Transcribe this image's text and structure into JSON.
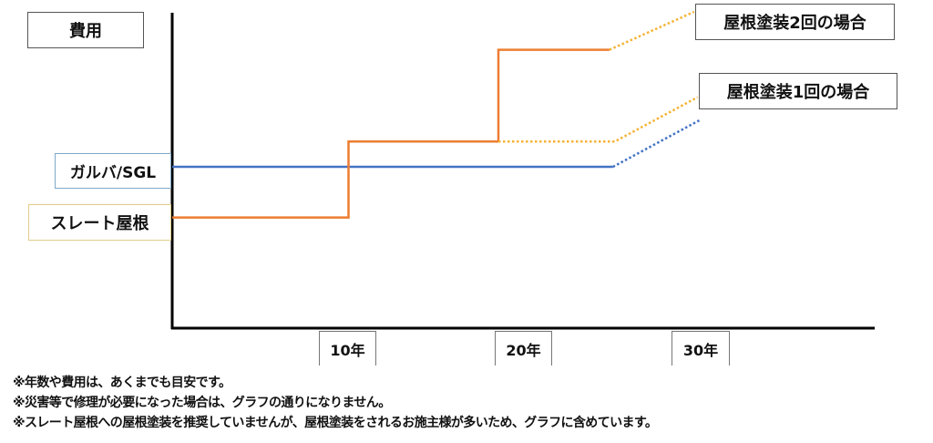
{
  "chart_data": {
    "type": "line",
    "ylabel": "費用",
    "x_ticks": [
      "10年",
      "20年",
      "30年"
    ],
    "x_tick_values": [
      10,
      20,
      30
    ],
    "xlim": [
      0,
      40
    ],
    "ylim": [
      0,
      100
    ],
    "grid": false,
    "colors": {
      "slate": "#ED7D31",
      "slate_projection": "#F5B335",
      "galva": "#4472C4",
      "axis": "#000000"
    },
    "series": [
      {
        "name": "ガルバ/SGL",
        "style": "solid",
        "points": [
          [
            0,
            51
          ],
          [
            25,
            51
          ]
        ]
      },
      {
        "name": "ガルバ/SGL",
        "style": "dotted",
        "points": [
          [
            25,
            51
          ],
          [
            30,
            66
          ]
        ]
      },
      {
        "name": "スレート屋根",
        "style": "solid",
        "points": [
          [
            0,
            35
          ],
          [
            10,
            35
          ],
          [
            10,
            59
          ],
          [
            18.5,
            59
          ],
          [
            18.5,
            88
          ],
          [
            24.8,
            88
          ]
        ]
      },
      {
        "name": "屋根塗装2回の場合",
        "style": "dotted",
        "points": [
          [
            24.8,
            88
          ],
          [
            29.6,
            100
          ]
        ]
      },
      {
        "name": "屋根塗装1回の場合",
        "style": "dotted",
        "points": [
          [
            18.5,
            59
          ],
          [
            25.1,
            59
          ],
          [
            29.8,
            73
          ]
        ]
      }
    ]
  },
  "labels": {
    "y_axis": "費用",
    "galva": "ガルバ/SGL",
    "slate": "スレート屋根",
    "paint2": "屋根塗装2回の場合",
    "paint1": "屋根塗装1回の場合"
  },
  "notes": [
    "※年数や費用は、あくまでも目安です。",
    "※災害等で修理が必要になった場合は、グラフの通りになりません。",
    "※スレート屋根への屋根塗装を推奨していませんが、屋根塗装をされるお施主様が多いため、グラフに含めています。"
  ]
}
